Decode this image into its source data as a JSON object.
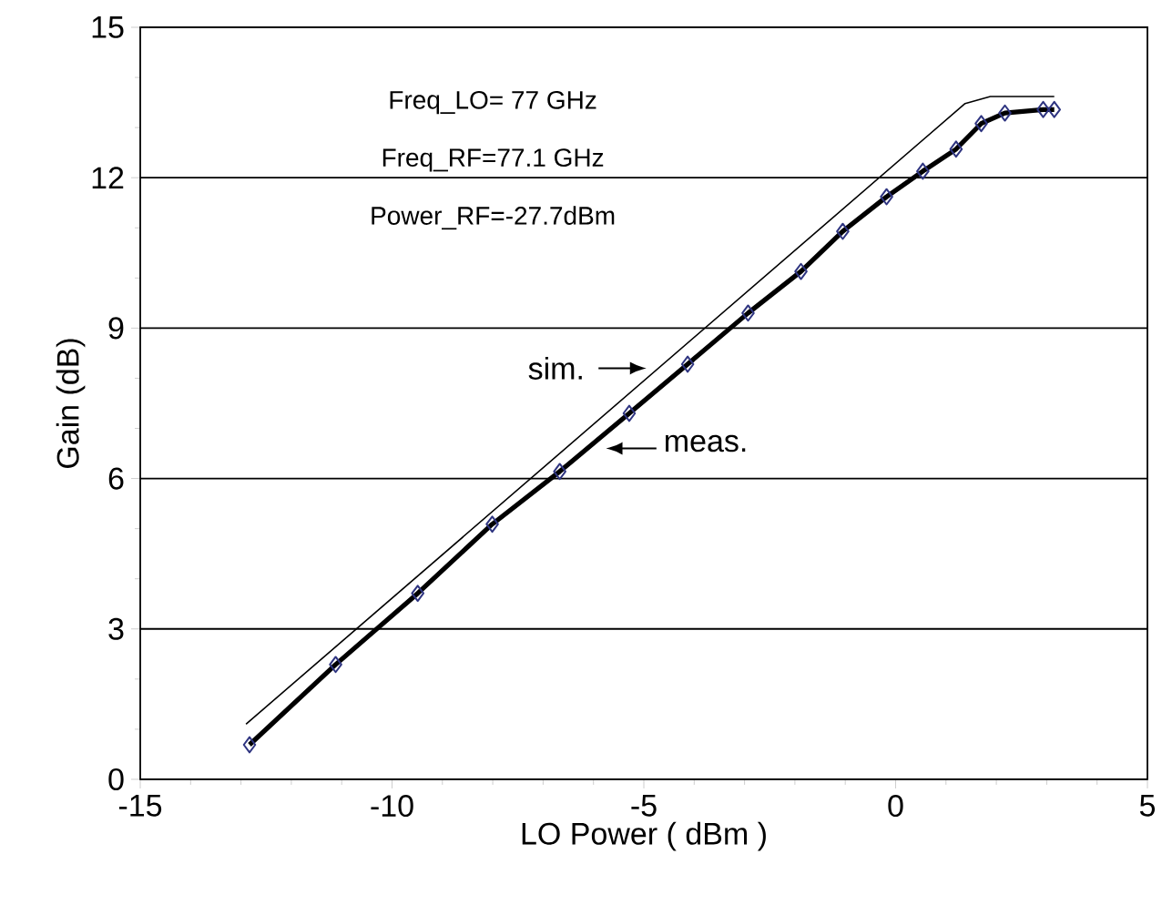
{
  "chart_data": {
    "type": "line",
    "xlabel": "LO Power ( dBm )",
    "ylabel": "Gain (dB)",
    "xlim": [
      -15,
      5
    ],
    "xticks": [
      -15,
      -10,
      -5,
      0,
      5
    ],
    "ylim": [
      0,
      15
    ],
    "yticks": [
      0,
      3,
      6,
      9,
      12,
      15
    ],
    "grid": "y",
    "annotations": [
      "Freq_LO= 77 GHz",
      "Freq_RF=77.1 GHz",
      "Power_RF=-27.7dBm"
    ],
    "series": [
      {
        "name": "sim.",
        "color": "#000000",
        "marker": "none",
        "x": [
          -12.9,
          1.38,
          1.88,
          3.15
        ],
        "values": [
          1.1,
          13.48,
          13.62,
          13.62
        ]
      },
      {
        "name": "meas.",
        "color": "#000000",
        "marker": "diamond",
        "x": [
          -12.83,
          -11.12,
          -9.49,
          -8.01,
          -6.67,
          -5.29,
          -4.13,
          -2.93,
          -1.88,
          -1.05,
          -0.18,
          0.54,
          1.2,
          1.7,
          2.17,
          2.93,
          3.15
        ],
        "values": [
          0.69,
          2.29,
          3.71,
          5.09,
          6.14,
          7.3,
          8.28,
          9.3,
          10.13,
          10.93,
          11.62,
          12.13,
          12.57,
          13.08,
          13.29,
          13.36,
          13.36
        ]
      }
    ]
  }
}
